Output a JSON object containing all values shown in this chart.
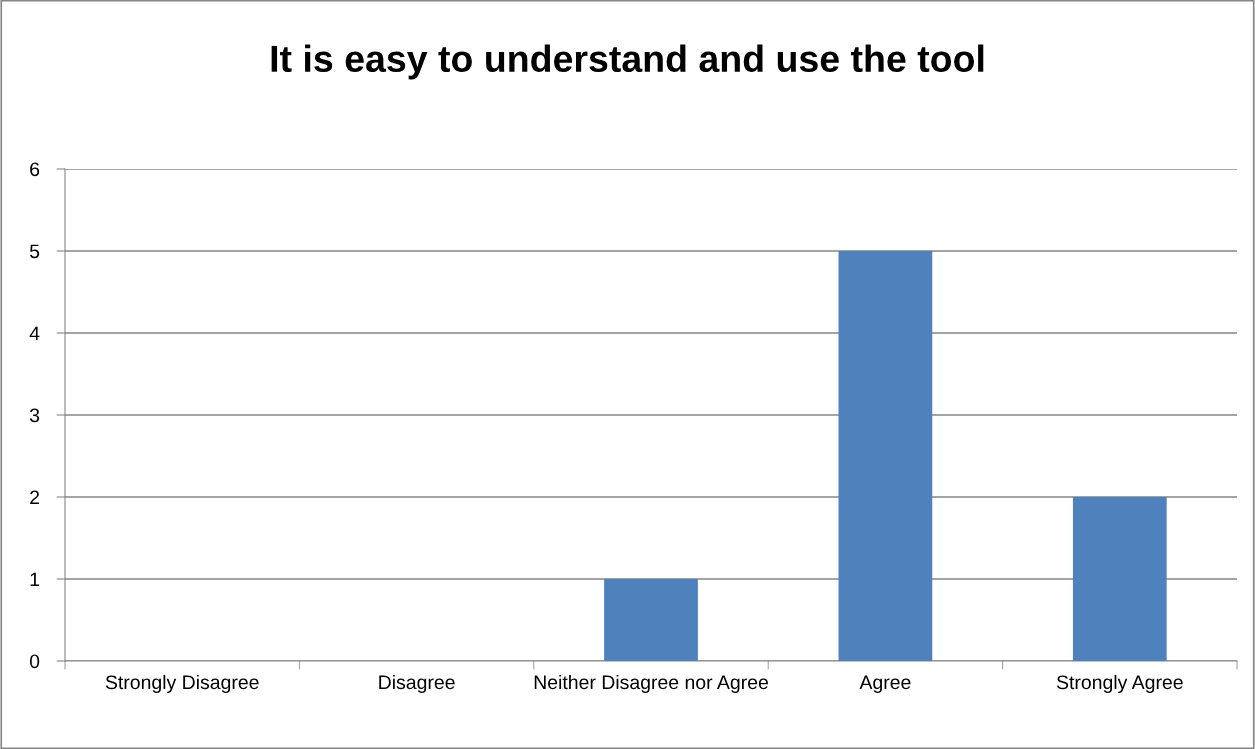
{
  "chart_data": {
    "type": "bar",
    "title": "It is easy to understand and use the tool",
    "categories": [
      "Strongly Disagree",
      "Disagree",
      "Neither Disagree nor Agree",
      "Agree",
      "Strongly Agree"
    ],
    "values": [
      0,
      0,
      1,
      5,
      2
    ],
    "color": "#4f81bd",
    "ylim": [
      0,
      6
    ],
    "yticks": [
      0,
      1,
      2,
      3,
      4,
      5,
      6
    ],
    "grid": "y",
    "legend": false
  }
}
